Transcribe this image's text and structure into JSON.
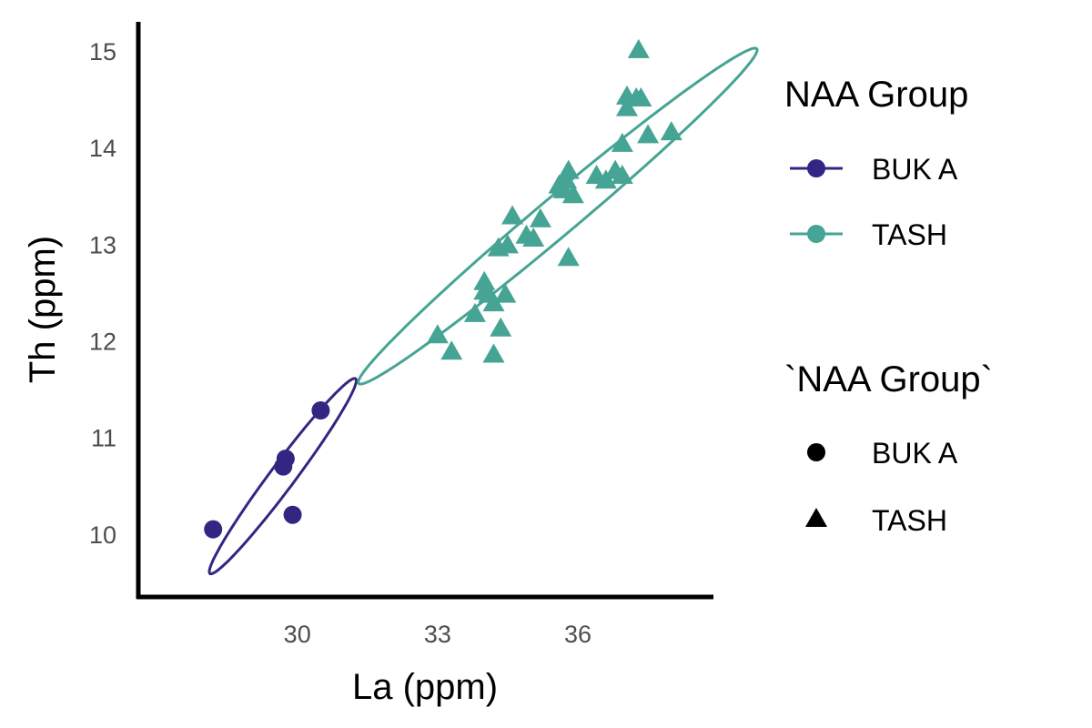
{
  "chart_data": {
    "type": "scatter",
    "title": "",
    "xlabel": "La (ppm)",
    "ylabel": "Th (ppm)",
    "xlim": [
      26.6,
      38.9
    ],
    "ylim": [
      9.35,
      15.3
    ],
    "xticks": [
      30,
      33,
      36
    ],
    "yticks": [
      10,
      11,
      12,
      13,
      14,
      15
    ],
    "grid": false,
    "legend_position": "right",
    "colors": {
      "BUK A": "#312783",
      "TASH": "#45a493",
      "shape_key": "#000000",
      "axis": "#000000"
    },
    "series": [
      {
        "name": "BUK A",
        "marker": "circle",
        "x": [
          28.2,
          29.7,
          29.75,
          29.9,
          30.5
        ],
        "y": [
          10.05,
          10.7,
          10.78,
          10.2,
          11.28
        ]
      },
      {
        "name": "TASH",
        "marker": "triangle",
        "x": [
          33.0,
          33.3,
          33.8,
          34.0,
          34.0,
          34.1,
          34.2,
          34.2,
          34.3,
          34.35,
          34.5,
          34.45,
          34.6,
          34.9,
          35.05,
          35.2,
          35.6,
          35.7,
          35.75,
          35.8,
          35.8,
          35.9,
          36.4,
          36.6,
          36.8,
          36.95,
          36.95,
          37.05,
          37.05,
          37.25,
          37.35,
          37.3,
          37.5,
          38.0
        ],
        "y": [
          12.05,
          11.88,
          12.27,
          12.5,
          12.6,
          12.47,
          11.85,
          12.38,
          12.95,
          12.12,
          12.98,
          12.47,
          13.28,
          13.08,
          13.05,
          13.25,
          13.6,
          13.55,
          13.65,
          13.75,
          12.85,
          13.5,
          13.7,
          13.65,
          13.75,
          13.7,
          14.03,
          14.4,
          14.52,
          14.5,
          14.5,
          15.0,
          14.12,
          14.15
        ]
      }
    ],
    "ellipses": [
      {
        "name": "BUK A",
        "center": [
          29.69,
          10.6
        ],
        "semi_axes": [
          1.86,
          0.18
        ],
        "rotation_deg": 32.5
      },
      {
        "name": "TASH",
        "center": [
          35.57,
          13.29
        ],
        "semi_axes": [
          4.6,
          0.24
        ],
        "rotation_deg": 22
      }
    ]
  },
  "legend": {
    "color_title": "NAA Group",
    "color_items": [
      "BUK A",
      "TASH"
    ],
    "shape_title": "`NAA Group`",
    "shape_items": [
      {
        "label": "BUK A",
        "marker": "circle"
      },
      {
        "label": "TASH",
        "marker": "triangle"
      }
    ]
  }
}
